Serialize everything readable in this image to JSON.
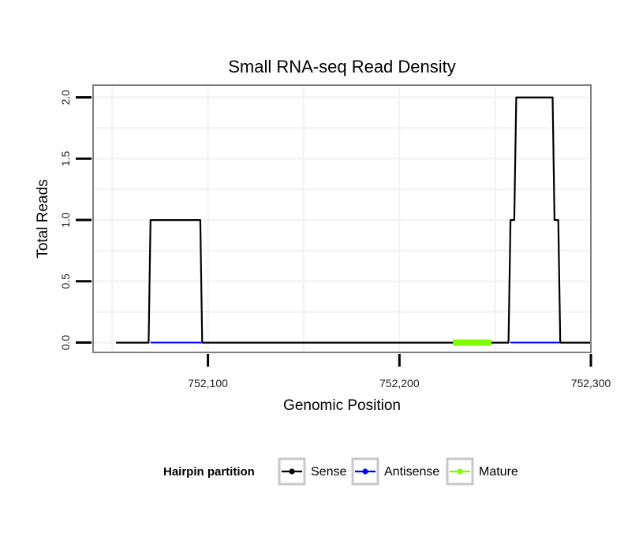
{
  "chart_data": {
    "type": "line",
    "title": "Small RNA-seq Read Density",
    "xlabel": "Genomic Position",
    "ylabel": "Total Reads",
    "xlim": [
      752040,
      752300
    ],
    "ylim": [
      -0.08,
      2.1
    ],
    "x_ticks": [
      752100,
      752200,
      752300
    ],
    "x_tick_labels": [
      "752,100",
      "752,200",
      "752,300"
    ],
    "y_ticks": [
      0,
      0.5,
      1,
      1.5,
      2
    ],
    "y_tick_labels": [
      "0.0",
      "0.5",
      "1.0",
      "1.5",
      "2.0"
    ],
    "grid": true,
    "legend": {
      "title": "Hairpin partition",
      "position": "bottom",
      "entries": [
        "Sense",
        "Antisense",
        "Mature"
      ]
    },
    "series": [
      {
        "name": "Sense",
        "color": "#000000",
        "x": [
          752052,
          752069,
          752070,
          752096,
          752097,
          752257,
          752258,
          752260,
          752261,
          752280,
          752281,
          752283,
          752284,
          752300
        ],
        "y": [
          0,
          0,
          1,
          1,
          0,
          0,
          1,
          1,
          2,
          2,
          1,
          1,
          0,
          0
        ]
      },
      {
        "name": "Antisense",
        "color": "#0000ff",
        "segments": [
          [
            752070,
            752097
          ],
          [
            752258,
            752284
          ]
        ],
        "y": 0
      },
      {
        "name": "Mature",
        "color": "#7fff00",
        "segments": [
          [
            752228,
            752248
          ]
        ],
        "y": 0
      }
    ]
  }
}
